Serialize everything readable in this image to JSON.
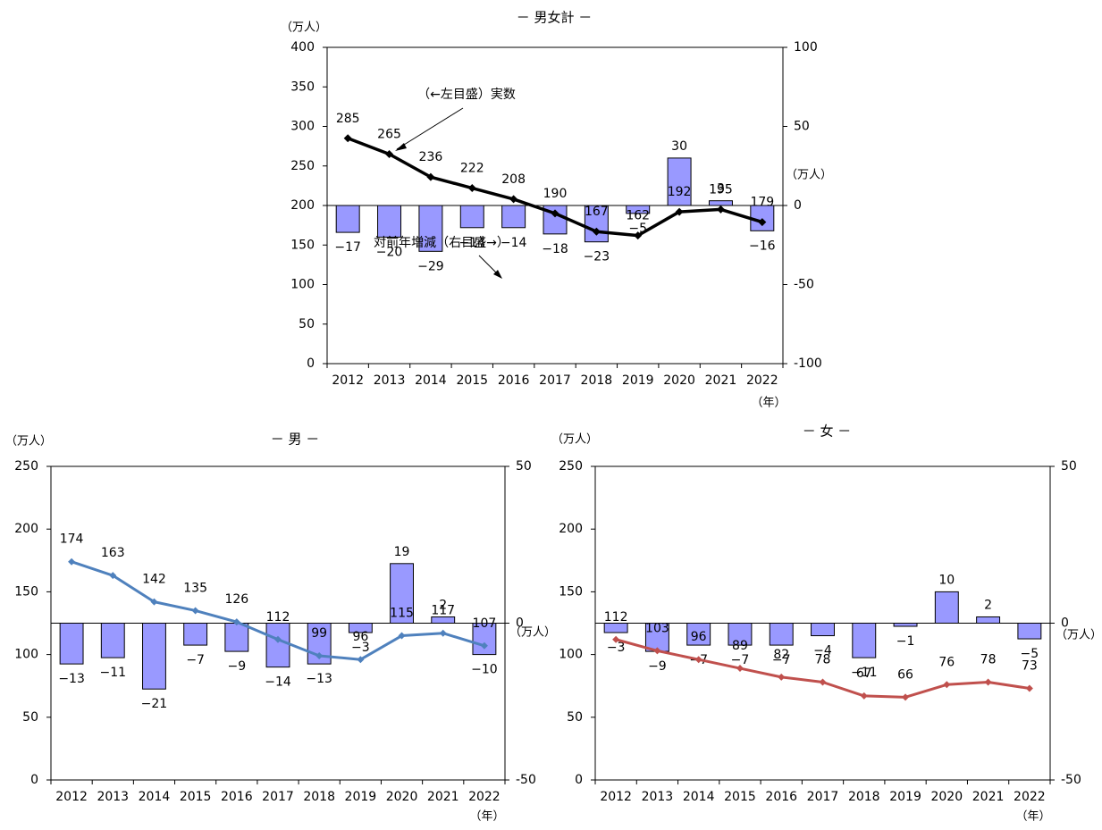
{
  "chart_data": [
    {
      "type": "line",
      "title": "－ 男女計 －",
      "categories": [
        "2012",
        "2013",
        "2014",
        "2015",
        "2016",
        "2017",
        "2018",
        "2019",
        "2020",
        "2021",
        "2022"
      ],
      "x_unit": "（年）",
      "left_axis": {
        "unit": "（万人）",
        "ylim": [
          0,
          400
        ],
        "ticks": [
          0,
          50,
          100,
          150,
          200,
          250,
          300,
          350,
          400
        ]
      },
      "right_axis": {
        "unit": "（万人）",
        "ylim": [
          -100,
          100
        ],
        "ticks": [
          -100,
          -50,
          0,
          50,
          100
        ]
      },
      "series": [
        {
          "name": "（←左目盛）実数",
          "type": "line",
          "axis": "left",
          "color": "#000000",
          "values": [
            285,
            265,
            236,
            222,
            208,
            190,
            167,
            162,
            192,
            195,
            179
          ]
        },
        {
          "name": "対前年増減（右目盛→）",
          "type": "bar",
          "axis": "right",
          "color": "#9999ff",
          "values": [
            -17,
            -20,
            -29,
            -14,
            -14,
            -18,
            -23,
            -5,
            30,
            3,
            -16
          ]
        }
      ],
      "bar_labels": [
        "−17",
        "−20",
        "−29",
        "−14",
        "−14",
        "−18",
        "−23",
        "−5",
        "30",
        "3",
        "−16"
      ],
      "annotations": [
        "（←左目盛）実数",
        "対前年増減（右目盛→）"
      ]
    },
    {
      "type": "line",
      "title": "－ 男 －",
      "categories": [
        "2012",
        "2013",
        "2014",
        "2015",
        "2016",
        "2017",
        "2018",
        "2019",
        "2020",
        "2021",
        "2022"
      ],
      "x_unit": "（年）",
      "left_axis": {
        "unit": "（万人）",
        "ylim": [
          0,
          250
        ],
        "ticks": [
          0,
          50,
          100,
          150,
          200,
          250
        ]
      },
      "right_axis": {
        "unit": "（万人）",
        "ylim": [
          -50,
          50
        ],
        "ticks": [
          -50,
          0,
          50
        ]
      },
      "series": [
        {
          "type": "line",
          "axis": "left",
          "color": "#4f81bd",
          "values": [
            174,
            163,
            142,
            135,
            126,
            112,
            99,
            96,
            115,
            117,
            107
          ]
        },
        {
          "type": "bar",
          "axis": "right",
          "color": "#9999ff",
          "values": [
            -13,
            -11,
            -21,
            -7,
            -9,
            -14,
            -13,
            -3,
            19,
            2,
            -10
          ]
        }
      ],
      "bar_labels": [
        "−13",
        "−11",
        "−21",
        "−7",
        "−9",
        "−14",
        "−13",
        "−3",
        "19",
        "2",
        "−10"
      ]
    },
    {
      "type": "line",
      "title": "－ 女 －",
      "categories": [
        "2012",
        "2013",
        "2014",
        "2015",
        "2016",
        "2017",
        "2018",
        "2019",
        "2020",
        "2021",
        "2022"
      ],
      "x_unit": "（年）",
      "left_axis": {
        "unit": "（万人）",
        "ylim": [
          0,
          250
        ],
        "ticks": [
          0,
          50,
          100,
          150,
          200,
          250
        ]
      },
      "right_axis": {
        "unit": "（万人）",
        "ylim": [
          -50,
          50
        ],
        "ticks": [
          -50,
          0,
          50
        ]
      },
      "series": [
        {
          "type": "line",
          "axis": "left",
          "color": "#c0504d",
          "values": [
            112,
            103,
            96,
            89,
            82,
            78,
            67,
            66,
            76,
            78,
            73
          ]
        },
        {
          "type": "bar",
          "axis": "right",
          "color": "#9999ff",
          "values": [
            -3,
            -9,
            -7,
            -7,
            -7,
            -4,
            -11,
            -1,
            10,
            2,
            -5
          ]
        }
      ],
      "bar_labels": [
        "−3",
        "−9",
        "−7",
        "−7",
        "−7",
        "−4",
        "−11",
        "−1",
        "10",
        "2",
        "−5"
      ]
    }
  ]
}
